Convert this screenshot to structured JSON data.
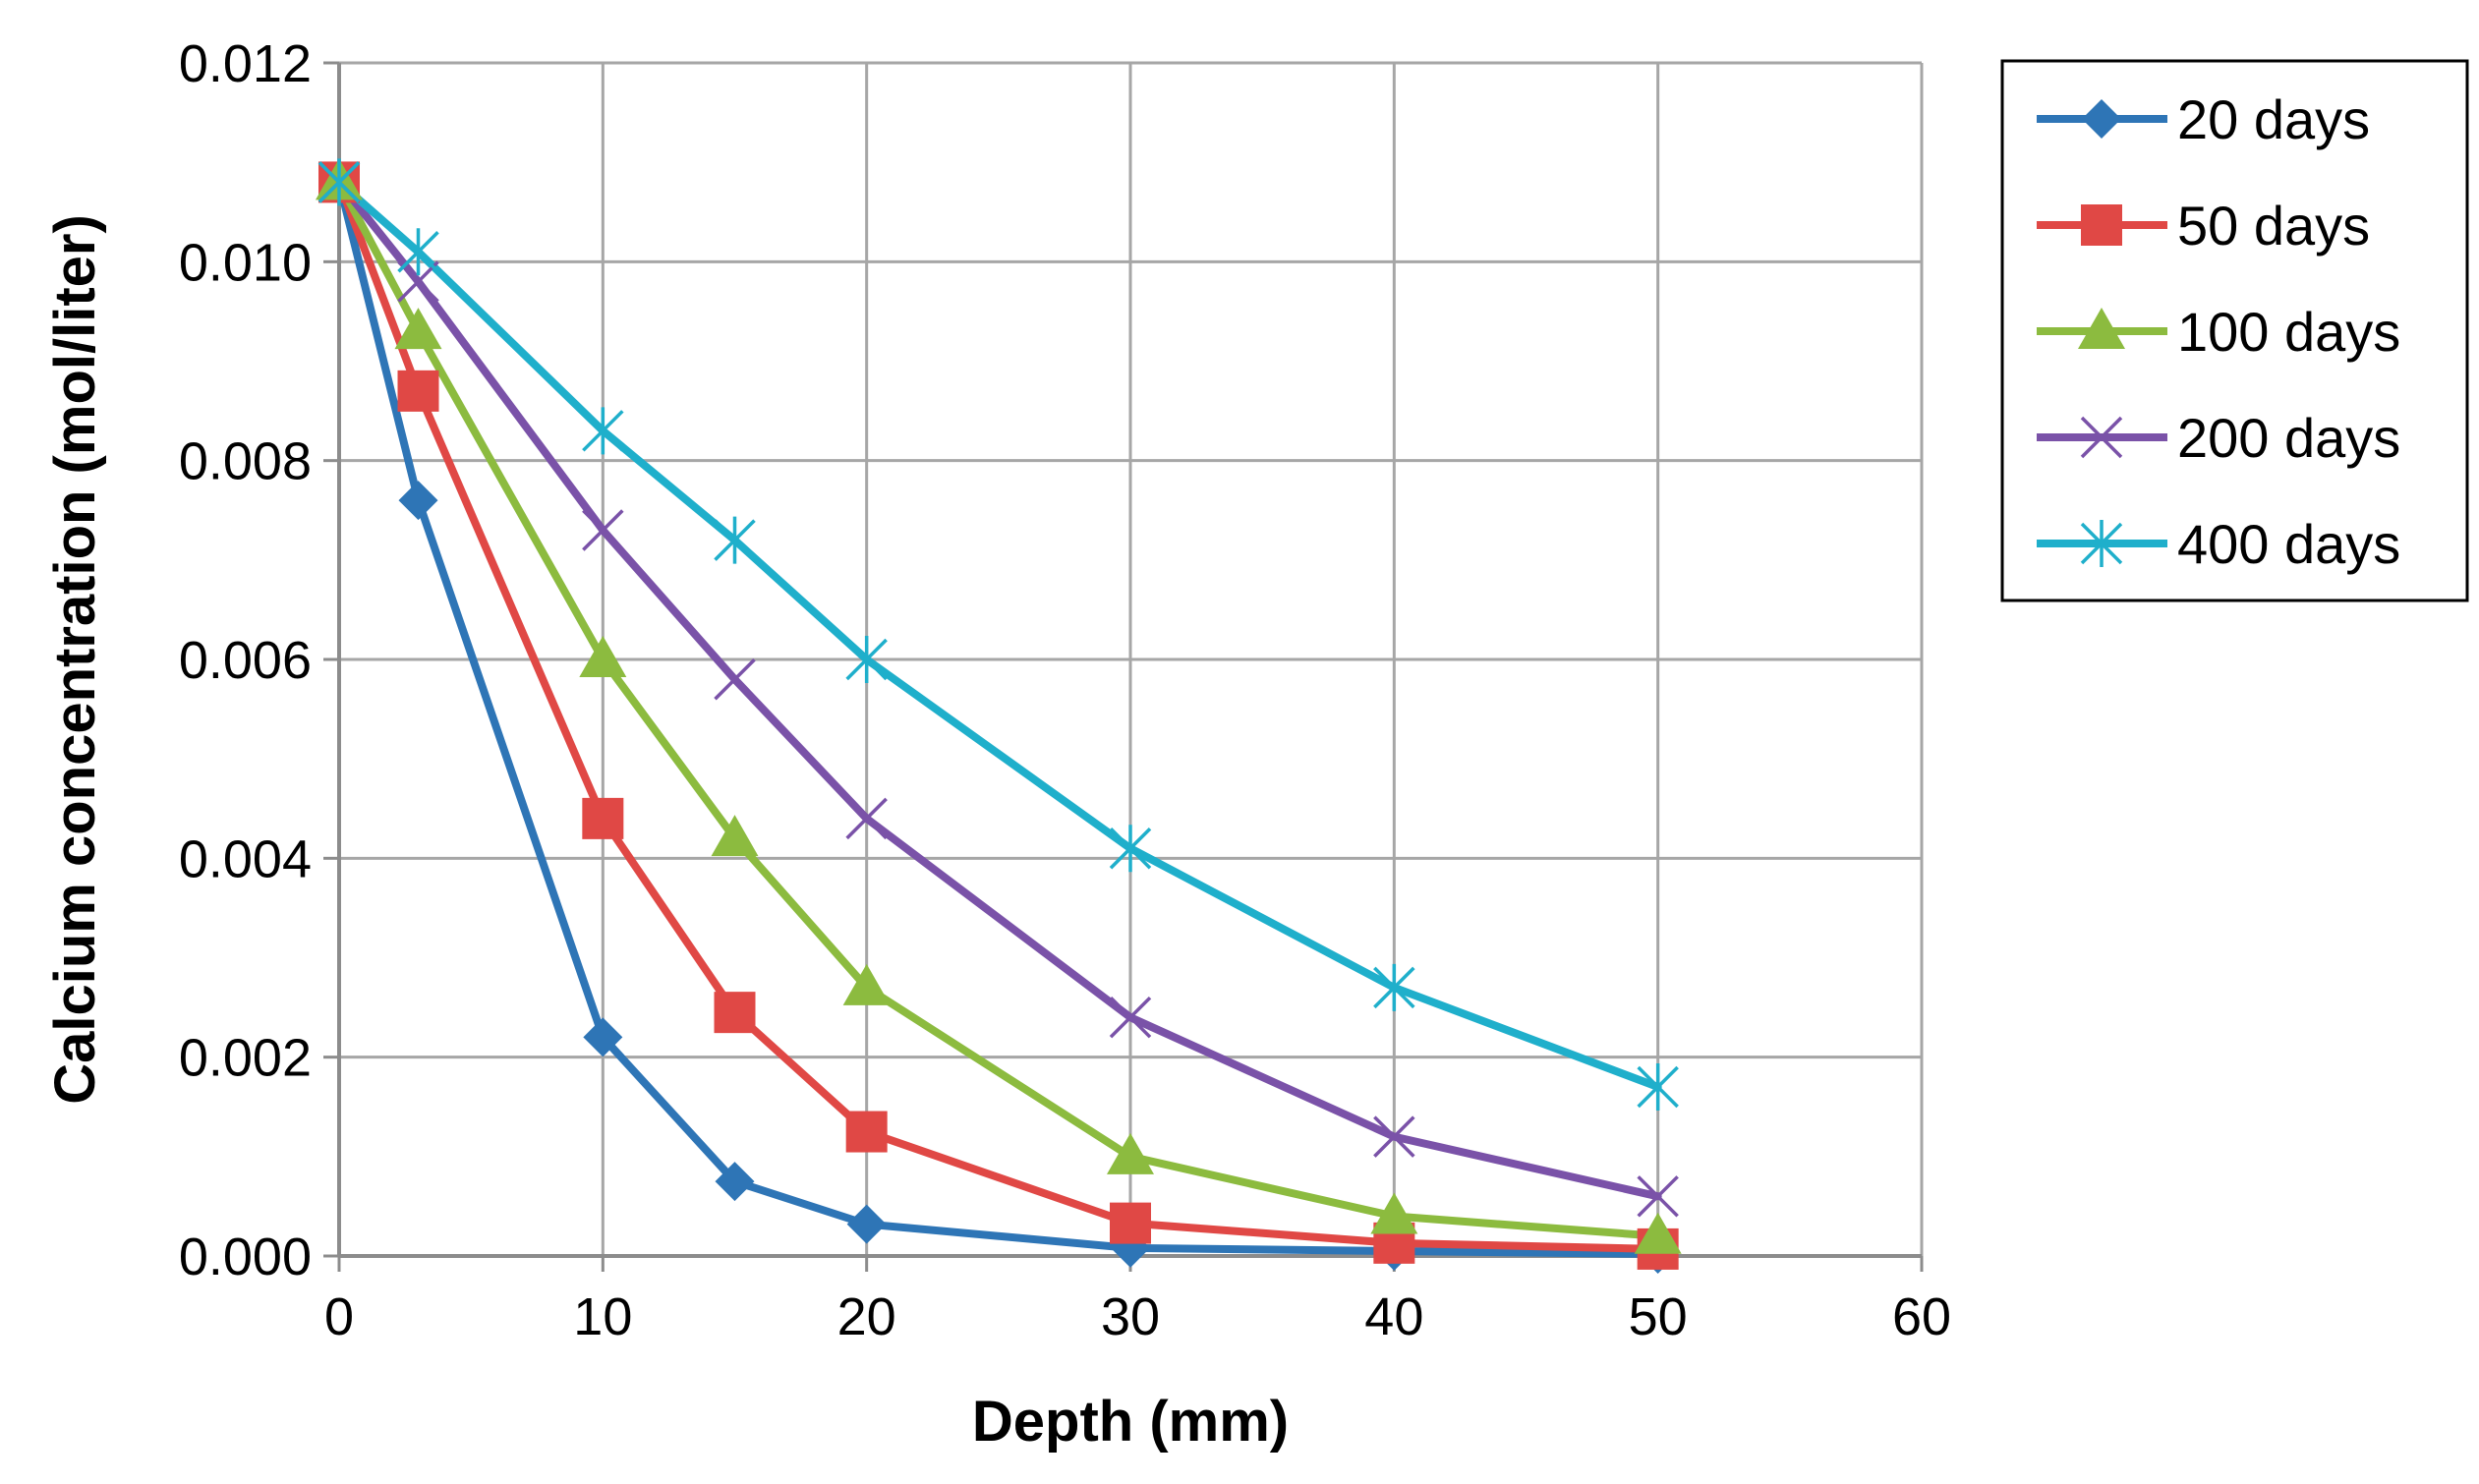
{
  "chart_data": {
    "type": "line",
    "title": "",
    "xlabel": "Depth (mm)",
    "ylabel": "Calcium concentration (mol/liter)",
    "xlim": [
      0,
      60
    ],
    "ylim": [
      0,
      0.012
    ],
    "x_ticks": [
      0,
      10,
      20,
      30,
      40,
      50,
      60
    ],
    "y_ticks": [
      0.0,
      0.002,
      0.004,
      0.006,
      0.008,
      0.01,
      0.012
    ],
    "x_tick_labels": [
      "0",
      "10",
      "20",
      "30",
      "40",
      "50",
      "60"
    ],
    "y_tick_labels": [
      "0.000",
      "0.002",
      "0.004",
      "0.006",
      "0.008",
      "0.010",
      "0.012"
    ],
    "grid": true,
    "legend_position": "top-right, outside plot",
    "x": [
      0,
      3,
      10,
      15,
      20,
      30,
      40,
      50
    ],
    "series": [
      {
        "name": "20 days",
        "color": "#2E75B6",
        "marker": "diamond",
        "values": [
          0.0108,
          0.0076,
          0.0022,
          0.00075,
          0.00032,
          8e-05,
          5e-05,
          2e-05
        ]
      },
      {
        "name": "50 days",
        "color": "#E04845",
        "marker": "square",
        "values": [
          0.0108,
          0.0087,
          0.0044,
          0.00245,
          0.00125,
          0.00033,
          0.00013,
          7e-05
        ]
      },
      {
        "name": "100 days",
        "color": "#8CBB3F",
        "marker": "triangle",
        "values": [
          0.0108,
          0.0093,
          0.006,
          0.0042,
          0.0027,
          0.001,
          0.0004,
          0.0002
        ]
      },
      {
        "name": "200 days",
        "color": "#7A52A8",
        "marker": "x",
        "values": [
          0.0108,
          0.0098,
          0.0073,
          0.0058,
          0.0044,
          0.0024,
          0.0012,
          0.0006
        ]
      },
      {
        "name": "400 days",
        "color": "#1FAFCB",
        "marker": "star",
        "values": [
          0.0108,
          0.0101,
          0.0083,
          0.0072,
          0.006,
          0.0041,
          0.0027,
          0.0017
        ]
      }
    ]
  }
}
